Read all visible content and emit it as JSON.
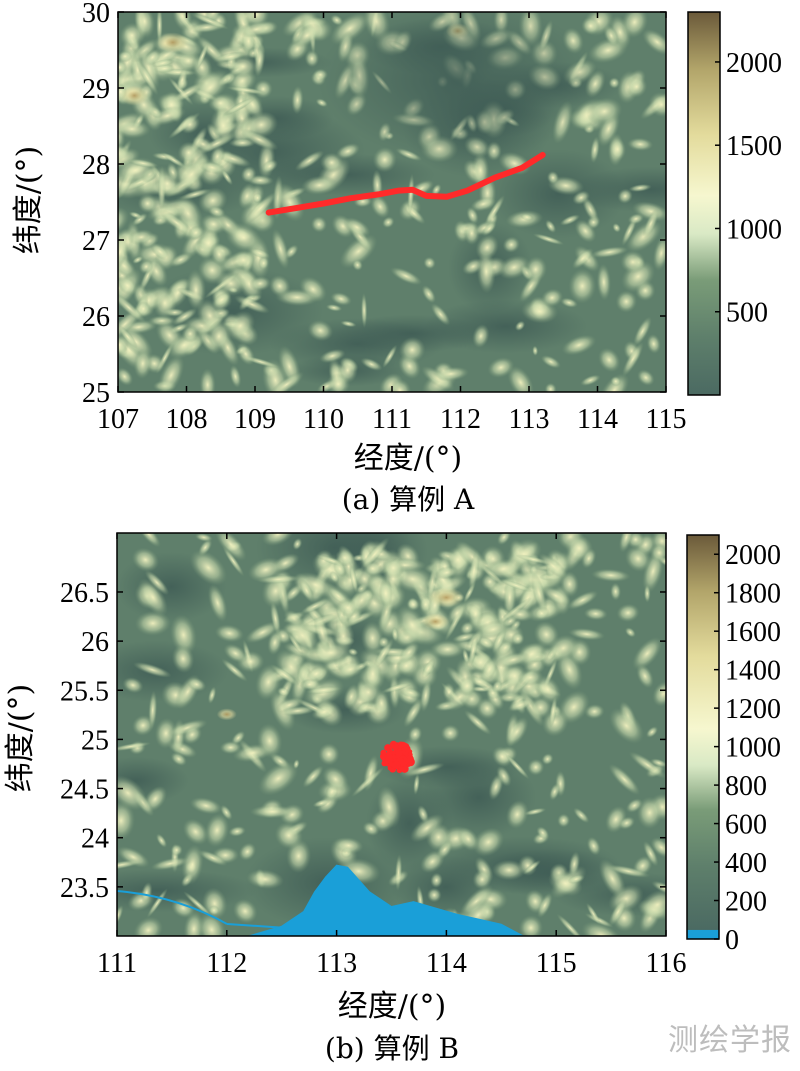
{
  "watermark": "测绘学报",
  "chart_data": [
    {
      "type": "heatmap",
      "panel_caption": "(a) 算例 A",
      "xlabel": "经度/(°)",
      "ylabel": "纬度/(°)",
      "xlim": [
        107,
        115
      ],
      "ylim": [
        25,
        30
      ],
      "x_ticks": [
        "107",
        "108",
        "109",
        "110",
        "111",
        "112",
        "113",
        "114",
        "115"
      ],
      "y_ticks": [
        "25",
        "26",
        "27",
        "28",
        "29",
        "30"
      ],
      "colorbar": {
        "range": [
          0,
          2300
        ],
        "ticks": [
          "500",
          "1000",
          "1500",
          "2000"
        ]
      },
      "colors": {
        "low": "#4b6a62",
        "mid": "#6f9170",
        "high": "#f2f2b8",
        "peak": "#6b5a3a",
        "track": "#ff2a2a"
      },
      "track": {
        "lon": [
          109.2,
          109.6,
          110.0,
          110.4,
          110.8,
          111.1,
          111.3,
          111.5,
          111.8,
          112.1,
          112.5,
          112.9,
          113.2
        ],
        "lat": [
          27.36,
          27.42,
          27.48,
          27.55,
          27.6,
          27.65,
          27.66,
          27.58,
          27.57,
          27.65,
          27.82,
          27.95,
          28.12
        ]
      }
    },
    {
      "type": "heatmap",
      "panel_caption": "(b) 算例 B",
      "xlabel": "经度/(°)",
      "ylabel": "纬度/(°)",
      "xlim": [
        111,
        116
      ],
      "ylim": [
        23,
        27.1
      ],
      "x_ticks": [
        "111",
        "112",
        "113",
        "114",
        "115",
        "116"
      ],
      "y_ticks": [
        "23.5",
        "24",
        "24.5",
        "25",
        "25.5",
        "26",
        "26.5"
      ],
      "colorbar": {
        "range": [
          0,
          2100
        ],
        "ticks": [
          "0",
          "200",
          "400",
          "600",
          "800",
          "1000",
          "1200",
          "1400",
          "1600",
          "1800",
          "2000"
        ]
      },
      "colors": {
        "low": "#4b6a62",
        "mid": "#6f9170",
        "high": "#f2f2b8",
        "peak": "#6b5a3a",
        "water": "#1a9fd8",
        "region": "#ff2a2a"
      },
      "region_center": {
        "lon": 113.55,
        "lat": 24.82
      },
      "water_area": {
        "lon": [
          112.2,
          112.5,
          112.7,
          112.8,
          112.9,
          113.0,
          113.1,
          113.3,
          113.5,
          113.7,
          114.1,
          114.5,
          114.7,
          114.2,
          113.0,
          112.2
        ],
        "lat": [
          23.0,
          23.1,
          23.25,
          23.45,
          23.6,
          23.72,
          23.7,
          23.45,
          23.3,
          23.35,
          23.22,
          23.12,
          23.0,
          23.0,
          23.0,
          23.0
        ]
      }
    }
  ]
}
